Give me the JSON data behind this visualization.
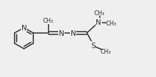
{
  "bg_color": "#efefef",
  "line_color": "#2a2a2a",
  "line_width": 1.1,
  "font_size": 6.5,
  "figsize": [
    2.25,
    1.13
  ],
  "dpi": 100,
  "xlim": [
    0,
    22.5
  ],
  "ylim": [
    0,
    11.3
  ]
}
